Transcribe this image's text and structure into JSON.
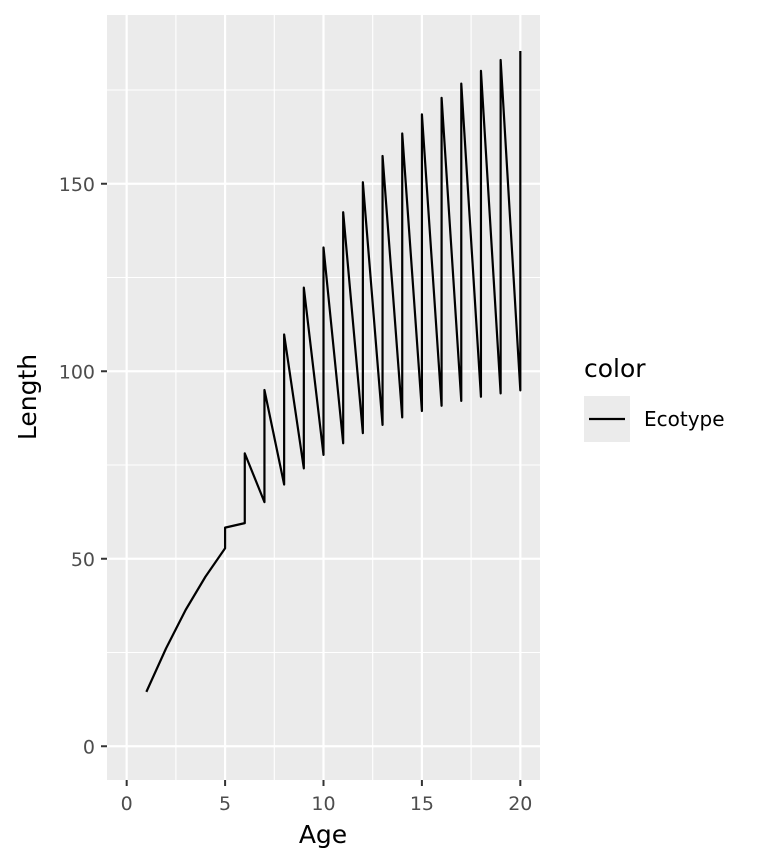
{
  "chart_data": {
    "type": "line",
    "title": "",
    "xlabel": "Age",
    "ylabel": "Length",
    "xlim": [
      -1,
      21
    ],
    "ylim": [
      -9,
      195
    ],
    "x_ticks": [
      0,
      5,
      10,
      15,
      20
    ],
    "y_ticks": [
      0,
      50,
      100,
      150
    ],
    "grid": true,
    "legend": {
      "title": "color",
      "position": "right",
      "entries": [
        "Ecotype"
      ]
    },
    "colors": {
      "panel": "#ebebeb",
      "grid": "#ffffff",
      "line": "#000000"
    },
    "series": [
      {
        "name": "Ecotype",
        "points": [
          [
            1,
            14.5
          ],
          [
            2,
            26.1
          ],
          [
            3,
            36.4
          ],
          [
            4,
            45.2
          ],
          [
            5,
            52.8
          ],
          [
            5,
            58.3
          ],
          [
            6,
            59.5
          ],
          [
            6,
            78.1
          ],
          [
            7,
            65.1
          ],
          [
            7,
            95.0
          ],
          [
            8,
            69.8
          ],
          [
            8,
            109.8
          ],
          [
            9,
            74.1
          ],
          [
            9,
            122.3
          ],
          [
            10,
            77.7
          ],
          [
            10,
            133.0
          ],
          [
            11,
            80.8
          ],
          [
            11,
            142.4
          ],
          [
            12,
            83.5
          ],
          [
            12,
            150.4
          ],
          [
            13,
            85.7
          ],
          [
            13,
            157.4
          ],
          [
            14,
            87.7
          ],
          [
            14,
            163.4
          ],
          [
            15,
            89.4
          ],
          [
            15,
            168.5
          ],
          [
            16,
            90.8
          ],
          [
            16,
            172.9
          ],
          [
            17,
            92.1
          ],
          [
            17,
            176.7
          ],
          [
            18,
            93.2
          ],
          [
            18,
            180.1
          ],
          [
            19,
            94.1
          ],
          [
            19,
            183.0
          ],
          [
            20,
            94.9
          ],
          [
            20,
            185.4
          ]
        ]
      }
    ]
  }
}
